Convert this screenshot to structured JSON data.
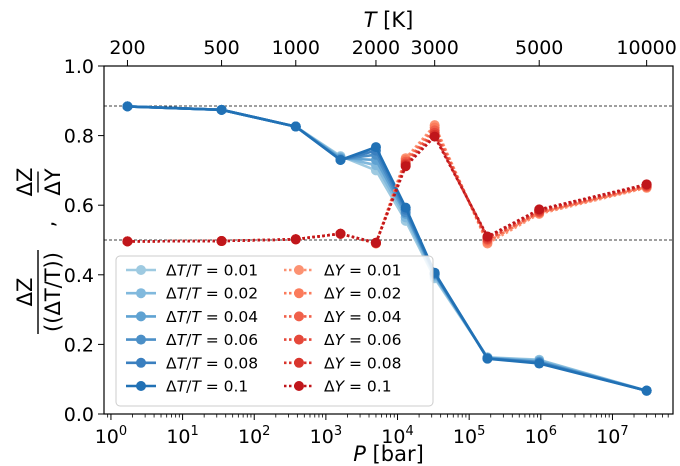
{
  "chart_data": {
    "type": "line",
    "x_axis": {
      "label": "P [bar]",
      "scale": "log",
      "ticks": [
        1,
        10,
        100,
        1000,
        10000,
        100000,
        1000000,
        10000000
      ],
      "tick_labels": [
        "10⁰",
        "10¹",
        "10²",
        "10³",
        "10⁴",
        "10⁵",
        "10⁶",
        "10⁷"
      ],
      "range": [
        0.8,
        70000000
      ]
    },
    "top_axis": {
      "label": "T [K]",
      "ticks": [
        {
          "label": "200",
          "p": 1.7
        },
        {
          "label": "500",
          "p": 35
        },
        {
          "label": "1000",
          "p": 380
        },
        {
          "label": "2000",
          "p": 5000
        },
        {
          "label": "3000",
          "p": 33000
        },
        {
          "label": "5000",
          "p": 950000
        },
        {
          "label": "10000",
          "p": 30000000
        }
      ]
    },
    "y_axis": {
      "label_left": "ΔZ / (ΔT/T)",
      "label_right": "ΔZ / ΔY",
      "range": [
        0.0,
        1.0
      ],
      "ticks": [
        0.0,
        0.2,
        0.4,
        0.6,
        0.8,
        1.0
      ],
      "tick_labels": [
        "0.0",
        "0.2",
        "0.4",
        "0.6",
        "0.8",
        "1.0"
      ]
    },
    "reference_lines": [
      0.885,
      0.5
    ],
    "x": [
      1.7,
      35,
      380,
      1600,
      5000,
      13000,
      33000,
      180000,
      950000,
      30000000
    ],
    "series": [
      {
        "name": "ΔT/T = 0.01",
        "group": "dT",
        "color": "#9ecae1",
        "values": [
          0.884,
          0.874,
          0.826,
          0.741,
          0.7,
          0.555,
          0.39,
          0.163,
          0.156,
          0.067
        ]
      },
      {
        "name": "ΔT/T = 0.02",
        "group": "dT",
        "color": "#81b9dd",
        "values": [
          0.884,
          0.874,
          0.826,
          0.738,
          0.715,
          0.565,
          0.395,
          0.162,
          0.154,
          0.067
        ]
      },
      {
        "name": "ΔT/T = 0.04",
        "group": "dT",
        "color": "#5fa2d2",
        "values": [
          0.884,
          0.874,
          0.826,
          0.735,
          0.73,
          0.575,
          0.4,
          0.161,
          0.151,
          0.067
        ]
      },
      {
        "name": "ΔT/T = 0.06",
        "group": "dT",
        "color": "#4b8fc7",
        "values": [
          0.884,
          0.874,
          0.826,
          0.732,
          0.745,
          0.58,
          0.402,
          0.16,
          0.149,
          0.067
        ]
      },
      {
        "name": "ΔT/T = 0.08",
        "group": "dT",
        "color": "#3a7fbf",
        "values": [
          0.884,
          0.874,
          0.826,
          0.73,
          0.757,
          0.587,
          0.404,
          0.16,
          0.147,
          0.067
        ]
      },
      {
        "name": "ΔT/T = 0.1",
        "group": "dT",
        "color": "#2171b5",
        "values": [
          0.884,
          0.874,
          0.826,
          0.73,
          0.767,
          0.593,
          0.406,
          0.159,
          0.145,
          0.067
        ]
      },
      {
        "name": "ΔY = 0.01",
        "group": "dY",
        "color": "#fc9272",
        "values": [
          0.496,
          0.497,
          0.502,
          0.518,
          0.49,
          0.735,
          0.83,
          0.49,
          0.575,
          0.65
        ]
      },
      {
        "name": "ΔY = 0.02",
        "group": "dY",
        "color": "#fb7b5b",
        "values": [
          0.496,
          0.497,
          0.502,
          0.518,
          0.49,
          0.73,
          0.823,
          0.495,
          0.578,
          0.652
        ]
      },
      {
        "name": "ΔY = 0.04",
        "group": "dY",
        "color": "#f0604a",
        "values": [
          0.496,
          0.497,
          0.502,
          0.518,
          0.491,
          0.725,
          0.815,
          0.5,
          0.58,
          0.654
        ]
      },
      {
        "name": "ΔY = 0.06",
        "group": "dY",
        "color": "#e5483a",
        "values": [
          0.496,
          0.497,
          0.502,
          0.518,
          0.491,
          0.72,
          0.808,
          0.503,
          0.582,
          0.656
        ]
      },
      {
        "name": "ΔY = 0.08",
        "group": "dY",
        "color": "#d9352d",
        "values": [
          0.496,
          0.497,
          0.502,
          0.518,
          0.492,
          0.716,
          0.802,
          0.507,
          0.585,
          0.658
        ]
      },
      {
        "name": "ΔY = 0.1",
        "group": "dY",
        "color": "#c0161b",
        "values": [
          0.496,
          0.497,
          0.502,
          0.518,
          0.492,
          0.712,
          0.797,
          0.51,
          0.588,
          0.66
        ]
      }
    ],
    "legend": {
      "placement": "lower-left",
      "columns": 2
    }
  }
}
